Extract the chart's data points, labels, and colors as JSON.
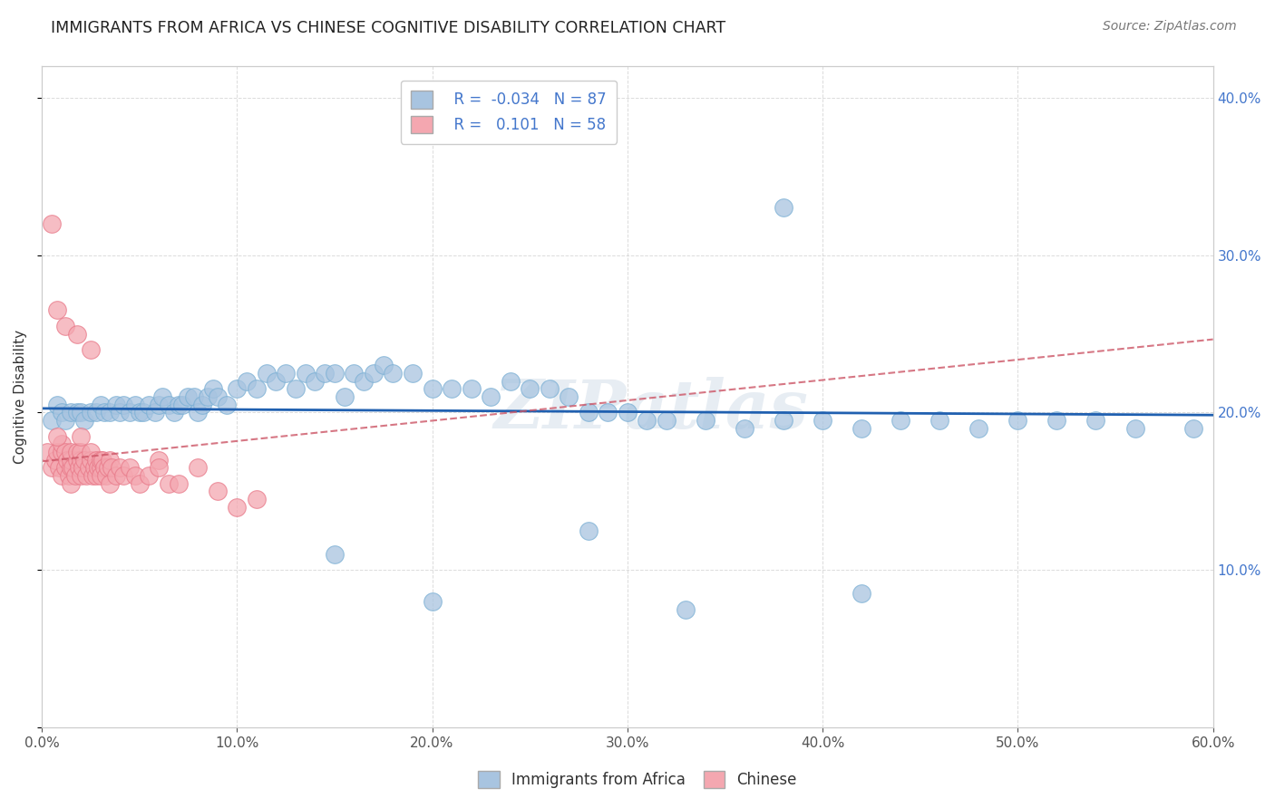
{
  "title": "IMMIGRANTS FROM AFRICA VS CHINESE COGNITIVE DISABILITY CORRELATION CHART",
  "source": "Source: ZipAtlas.com",
  "xlabel_bottom": "Immigrants from Africa",
  "ylabel": "Cognitive Disability",
  "legend_label1": "Immigrants from Africa",
  "legend_label2": "Chinese",
  "xlim": [
    0.0,
    0.6
  ],
  "ylim": [
    0.0,
    0.42
  ],
  "xticks": [
    0.0,
    0.1,
    0.2,
    0.3,
    0.4,
    0.5,
    0.6
  ],
  "yticks": [
    0.1,
    0.2,
    0.3,
    0.4
  ],
  "blue_R": -0.034,
  "blue_N": 87,
  "pink_R": 0.101,
  "pink_N": 58,
  "blue_color": "#a8c4e0",
  "blue_edge_color": "#7aafd4",
  "pink_color": "#f4a7b0",
  "pink_edge_color": "#e87888",
  "blue_line_color": "#2060b0",
  "pink_line_color": "#cc5566",
  "grid_color": "#cccccc",
  "right_tick_color": "#4477cc",
  "blue_scatter_x": [
    0.005,
    0.008,
    0.01,
    0.012,
    0.015,
    0.018,
    0.02,
    0.022,
    0.025,
    0.028,
    0.03,
    0.032,
    0.035,
    0.038,
    0.04,
    0.042,
    0.045,
    0.048,
    0.05,
    0.052,
    0.055,
    0.058,
    0.06,
    0.062,
    0.065,
    0.068,
    0.07,
    0.072,
    0.075,
    0.078,
    0.08,
    0.082,
    0.085,
    0.088,
    0.09,
    0.095,
    0.1,
    0.105,
    0.11,
    0.115,
    0.12,
    0.125,
    0.13,
    0.135,
    0.14,
    0.145,
    0.15,
    0.155,
    0.16,
    0.165,
    0.17,
    0.175,
    0.18,
    0.19,
    0.2,
    0.21,
    0.22,
    0.23,
    0.24,
    0.25,
    0.26,
    0.27,
    0.28,
    0.29,
    0.3,
    0.31,
    0.32,
    0.34,
    0.36,
    0.38,
    0.4,
    0.42,
    0.44,
    0.46,
    0.48,
    0.5,
    0.52,
    0.54,
    0.56,
    0.38,
    0.42,
    0.2,
    0.15,
    0.28,
    0.33,
    0.59
  ],
  "blue_scatter_y": [
    0.195,
    0.205,
    0.2,
    0.195,
    0.2,
    0.2,
    0.2,
    0.195,
    0.2,
    0.2,
    0.205,
    0.2,
    0.2,
    0.205,
    0.2,
    0.205,
    0.2,
    0.205,
    0.2,
    0.2,
    0.205,
    0.2,
    0.205,
    0.21,
    0.205,
    0.2,
    0.205,
    0.205,
    0.21,
    0.21,
    0.2,
    0.205,
    0.21,
    0.215,
    0.21,
    0.205,
    0.215,
    0.22,
    0.215,
    0.225,
    0.22,
    0.225,
    0.215,
    0.225,
    0.22,
    0.225,
    0.225,
    0.21,
    0.225,
    0.22,
    0.225,
    0.23,
    0.225,
    0.225,
    0.215,
    0.215,
    0.215,
    0.21,
    0.22,
    0.215,
    0.215,
    0.21,
    0.2,
    0.2,
    0.2,
    0.195,
    0.195,
    0.195,
    0.19,
    0.195,
    0.195,
    0.19,
    0.195,
    0.195,
    0.19,
    0.195,
    0.195,
    0.195,
    0.19,
    0.33,
    0.085,
    0.08,
    0.11,
    0.125,
    0.075,
    0.19
  ],
  "pink_scatter_x": [
    0.003,
    0.005,
    0.007,
    0.008,
    0.009,
    0.01,
    0.01,
    0.01,
    0.012,
    0.012,
    0.013,
    0.014,
    0.015,
    0.015,
    0.015,
    0.015,
    0.016,
    0.017,
    0.018,
    0.018,
    0.019,
    0.02,
    0.02,
    0.02,
    0.021,
    0.022,
    0.023,
    0.024,
    0.025,
    0.025,
    0.026,
    0.027,
    0.028,
    0.028,
    0.029,
    0.03,
    0.03,
    0.03,
    0.031,
    0.032,
    0.033,
    0.034,
    0.035,
    0.035,
    0.036,
    0.038,
    0.04,
    0.042,
    0.045,
    0.048,
    0.05,
    0.055,
    0.06,
    0.065,
    0.07,
    0.08,
    0.09,
    0.11
  ],
  "pink_scatter_y": [
    0.175,
    0.165,
    0.17,
    0.175,
    0.165,
    0.175,
    0.18,
    0.16,
    0.175,
    0.165,
    0.17,
    0.16,
    0.165,
    0.17,
    0.175,
    0.155,
    0.165,
    0.16,
    0.17,
    0.175,
    0.165,
    0.17,
    0.175,
    0.16,
    0.165,
    0.17,
    0.16,
    0.165,
    0.17,
    0.175,
    0.16,
    0.165,
    0.16,
    0.17,
    0.165,
    0.165,
    0.17,
    0.16,
    0.17,
    0.165,
    0.16,
    0.165,
    0.155,
    0.17,
    0.165,
    0.16,
    0.165,
    0.16,
    0.165,
    0.16,
    0.155,
    0.16,
    0.17,
    0.155,
    0.155,
    0.165,
    0.15,
    0.145
  ],
  "pink_outliers_x": [
    0.005,
    0.008,
    0.012,
    0.018,
    0.025,
    0.008,
    0.02,
    0.06,
    0.1
  ],
  "pink_outliers_y": [
    0.32,
    0.265,
    0.255,
    0.25,
    0.24,
    0.185,
    0.185,
    0.165,
    0.14
  ]
}
